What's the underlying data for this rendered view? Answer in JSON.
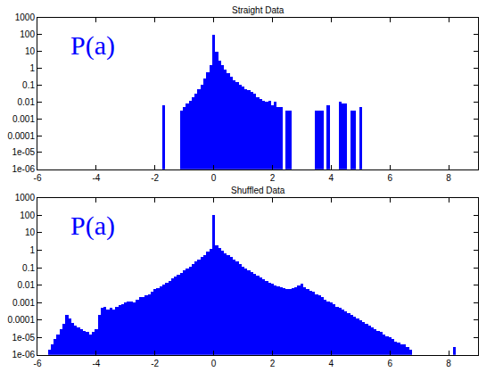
{
  "chart_data": [
    {
      "type": "histogram",
      "title": "Straight Data",
      "annotation": "P(a)",
      "color": "#0000ff",
      "log": "y",
      "grid": false,
      "xlim": [
        -6,
        9
      ],
      "xticks": [
        -6,
        -4,
        -2,
        0,
        2,
        4,
        6,
        8
      ],
      "ylim": [
        1e-06,
        1000
      ],
      "yticks": [
        {
          "value": 1e-06,
          "label": "1e-06"
        },
        {
          "value": 1e-05,
          "label": "1e-05"
        },
        0.0001,
        0.001,
        0.01,
        0.1,
        1,
        10,
        100,
        1000
      ],
      "bins": [
        -1.75,
        -1.65,
        -1.55,
        -1.45,
        -1.35,
        -1.25,
        -1.15,
        -1.05,
        -0.95,
        -0.85,
        -0.75,
        -0.65,
        -0.55,
        -0.45,
        -0.35,
        -0.25,
        -0.15,
        -0.05,
        0.05,
        0.15,
        0.25,
        0.35,
        0.45,
        0.55,
        0.65,
        0.75,
        0.85,
        0.95,
        1.05,
        1.15,
        1.25,
        1.35,
        1.45,
        1.55,
        1.65,
        1.75,
        1.85,
        1.95,
        2.05,
        2.15,
        2.25,
        2.35,
        2.45,
        2.55,
        2.65,
        2.75,
        2.85,
        2.95,
        3.05,
        3.15,
        3.25,
        3.35,
        3.45,
        3.55,
        3.65,
        3.75,
        3.85,
        3.95,
        4.05,
        4.15,
        4.25,
        4.35,
        4.45,
        4.55,
        4.65,
        4.75,
        4.85,
        4.95,
        5.05
      ],
      "values": [
        0.006,
        null,
        null,
        null,
        null,
        null,
        0.003,
        0.005,
        0.008,
        0.012,
        0.02,
        0.03,
        0.06,
        0.1,
        0.25,
        0.6,
        1.5,
        100,
        10,
        3,
        1.5,
        0.8,
        0.5,
        0.3,
        0.2,
        0.15,
        0.1,
        0.08,
        0.06,
        0.05,
        0.04,
        0.03,
        0.02,
        0.015,
        0.012,
        0.01,
        0.012,
        0.006,
        0.01,
        0.005,
        0.005,
        null,
        0.003,
        0.003,
        null,
        null,
        null,
        null,
        null,
        null,
        null,
        null,
        0.003,
        0.003,
        0.003,
        null,
        0.006,
        null,
        null,
        null,
        0.01,
        0.008,
        0.008,
        null,
        0.003,
        0.003,
        null,
        0.005
      ]
    },
    {
      "type": "histogram",
      "title": "Shuffled Data",
      "annotation": "P(a)",
      "color": "#0000ff",
      "log": "y",
      "grid": false,
      "xlim": [
        -6,
        9
      ],
      "xticks": [
        -6,
        -4,
        -2,
        0,
        2,
        4,
        6,
        8
      ],
      "ylim": [
        1e-06,
        1000
      ],
      "yticks": [
        {
          "value": 1e-06,
          "label": "1e-06"
        },
        {
          "value": 1e-05,
          "label": "1e-05"
        },
        0.0001,
        0.001,
        0.01,
        0.1,
        1,
        10,
        100,
        1000
      ],
      "bins": [
        -5.65,
        -5.55,
        -5.45,
        -5.35,
        -5.25,
        -5.15,
        -5.05,
        -4.95,
        -4.85,
        -4.75,
        -4.65,
        -4.55,
        -4.45,
        -4.35,
        -4.25,
        -4.15,
        -4.05,
        -3.95,
        -3.85,
        -3.75,
        -3.65,
        -3.55,
        -3.45,
        -3.35,
        -3.25,
        -3.15,
        -3.05,
        -2.95,
        -2.85,
        -2.75,
        -2.65,
        -2.55,
        -2.45,
        -2.35,
        -2.25,
        -2.15,
        -2.05,
        -1.95,
        -1.85,
        -1.75,
        -1.65,
        -1.55,
        -1.45,
        -1.35,
        -1.25,
        -1.15,
        -1.05,
        -0.95,
        -0.85,
        -0.75,
        -0.65,
        -0.55,
        -0.45,
        -0.35,
        -0.25,
        -0.15,
        -0.05,
        0.05,
        0.15,
        0.25,
        0.35,
        0.45,
        0.55,
        0.65,
        0.75,
        0.85,
        0.95,
        1.05,
        1.15,
        1.25,
        1.35,
        1.45,
        1.55,
        1.65,
        1.75,
        1.85,
        1.95,
        2.05,
        2.15,
        2.25,
        2.35,
        2.45,
        2.55,
        2.65,
        2.75,
        2.85,
        2.95,
        3.05,
        3.15,
        3.25,
        3.35,
        3.45,
        3.55,
        3.65,
        3.75,
        3.85,
        3.95,
        4.05,
        4.15,
        4.25,
        4.35,
        4.45,
        4.55,
        4.65,
        4.75,
        4.85,
        4.95,
        5.05,
        5.15,
        5.25,
        5.35,
        5.45,
        5.55,
        5.65,
        5.75,
        5.85,
        5.95,
        6.05,
        6.15,
        6.25,
        6.35,
        6.45,
        6.55,
        6.65,
        6.75,
        6.85,
        6.95,
        7.05,
        7.15,
        7.25,
        7.35,
        7.45,
        7.55,
        7.65,
        7.75,
        7.85,
        7.95,
        8.05,
        8.15,
        8.25
      ],
      "values": [
        2e-06,
        4e-06,
        8e-06,
        1.5e-05,
        3e-05,
        6e-05,
        0.0002,
        0.00012,
        7e-05,
        5e-05,
        4e-05,
        3e-05,
        2.5e-05,
        2e-05,
        1.5e-05,
        2e-05,
        3e-05,
        0.0002,
        0.0005,
        0.0006,
        0.0004,
        0.0005,
        0.0004,
        0.0006,
        0.0007,
        0.0008,
        0.001,
        0.0011,
        0.0012,
        0.001,
        0.0015,
        0.002,
        0.002,
        0.0025,
        0.003,
        0.004,
        0.006,
        0.007,
        0.009,
        0.011,
        0.014,
        0.018,
        0.025,
        0.03,
        0.04,
        0.05,
        0.07,
        0.09,
        0.12,
        0.16,
        0.22,
        0.3,
        0.4,
        0.55,
        0.8,
        1.2,
        100,
        2,
        1.3,
        1,
        0.7,
        0.5,
        0.4,
        0.3,
        0.22,
        0.16,
        0.12,
        0.09,
        0.07,
        0.055,
        0.045,
        0.035,
        0.028,
        0.022,
        0.018,
        0.014,
        0.012,
        0.01,
        0.009,
        0.008,
        0.007,
        0.006,
        0.006,
        0.007,
        0.008,
        0.01,
        0.012,
        0.008,
        0.006,
        0.005,
        0.004,
        0.003,
        0.0025,
        0.002,
        0.0015,
        0.0012,
        0.001,
        0.0008,
        0.0006,
        0.0005,
        0.0004,
        0.0003,
        0.00025,
        0.0002,
        0.00015,
        0.00012,
        0.0001,
        8e-05,
        6e-05,
        5e-05,
        4e-05,
        3e-05,
        2.5e-05,
        2e-05,
        1.5e-05,
        1.2e-05,
        1e-05,
        8e-06,
        6e-06,
        5e-06,
        4e-06,
        4e-06,
        3e-06,
        2e-06,
        null,
        null,
        null,
        null,
        null,
        null,
        null,
        null,
        null,
        null,
        null,
        null,
        null,
        null,
        3e-06
      ]
    }
  ]
}
